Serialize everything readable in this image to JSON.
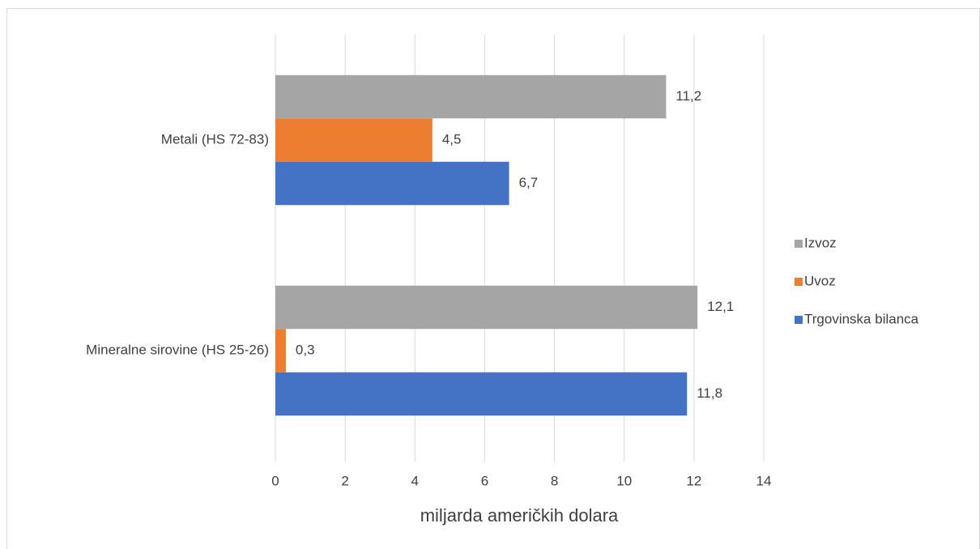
{
  "chart_data": {
    "type": "bar",
    "orientation": "horizontal",
    "x_axis_label": "miljarda američkih dolara",
    "categories": [
      "Metali (HS 72-83)",
      "Mineralne sirovine (HS 25-26)"
    ],
    "series": [
      {
        "name": "Izvoz",
        "color": "#a5a5a5",
        "values": [
          11.2,
          12.1
        ],
        "value_labels": [
          "11,2",
          "12,1"
        ]
      },
      {
        "name": "Uvoz",
        "color": "#ed7d31",
        "values": [
          4.5,
          0.3
        ],
        "value_labels": [
          "4,5",
          "0,3"
        ]
      },
      {
        "name": "Trgovinska bilanca",
        "color": "#4472c4",
        "values": [
          6.7,
          11.8
        ],
        "value_labels": [
          "6,7",
          "11,8"
        ]
      }
    ],
    "xlim": [
      0,
      14
    ],
    "xticks": [
      0,
      2,
      4,
      6,
      8,
      10,
      12,
      14
    ],
    "grid": true,
    "legend": "right"
  }
}
